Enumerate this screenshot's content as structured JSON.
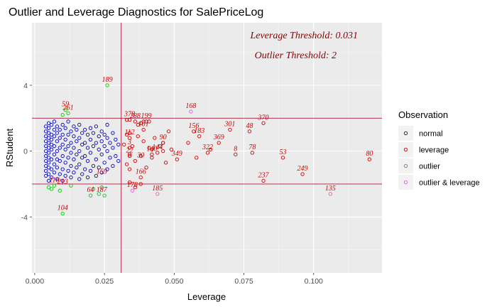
{
  "chart_data": {
    "type": "scatter",
    "title": "Outlier and Leverage Diagnostics for SalePriceLog",
    "xlabel": "Leverage",
    "ylabel": "RStudent",
    "xlim": [
      -0.001,
      0.1245
    ],
    "ylim": [
      -7.4,
      7.8
    ],
    "x_ticks": [
      0.0,
      0.025,
      0.05,
      0.075,
      0.1
    ],
    "x_tick_labels": [
      "0.000",
      "0.025",
      "0.050",
      "0.075",
      "0.100"
    ],
    "y_ticks": [
      -4,
      0,
      4
    ],
    "y_tick_labels": [
      "-4",
      "0",
      "4"
    ],
    "grid": true,
    "leverage_threshold": 0.031,
    "outlier_threshold": 2,
    "annotations": [
      "Leverage Threshold: 0.031",
      "Outlier Threshold: 2"
    ],
    "legend": {
      "title": "Observation",
      "position": "right",
      "entries": [
        {
          "label": "normal",
          "color": "#0000cc"
        },
        {
          "label": "leverage",
          "color": "#cc0000"
        },
        {
          "label": "outlier",
          "color": "#00cc00"
        },
        {
          "label": "outlier & leverage",
          "color": "#cc66cc"
        }
      ]
    },
    "series": [
      {
        "name": "normal",
        "color": "#0000cc",
        "points": [
          [
            0.004,
            -1.5
          ],
          [
            0.004,
            -1.2
          ],
          [
            0.004,
            -0.9
          ],
          [
            0.004,
            -0.6
          ],
          [
            0.004,
            -0.3
          ],
          [
            0.004,
            0.0
          ],
          [
            0.004,
            0.3
          ],
          [
            0.004,
            0.6
          ],
          [
            0.004,
            0.9
          ],
          [
            0.004,
            1.2
          ],
          [
            0.004,
            1.5
          ],
          [
            0.005,
            -1.8
          ],
          [
            0.005,
            -1.4
          ],
          [
            0.005,
            -1.0
          ],
          [
            0.005,
            -0.7
          ],
          [
            0.005,
            -0.4
          ],
          [
            0.005,
            -0.1
          ],
          [
            0.005,
            0.2
          ],
          [
            0.005,
            0.5
          ],
          [
            0.005,
            0.8
          ],
          [
            0.005,
            1.1
          ],
          [
            0.005,
            1.4
          ],
          [
            0.005,
            1.7
          ],
          [
            0.006,
            -1.6
          ],
          [
            0.006,
            -1.1
          ],
          [
            0.006,
            -0.5
          ],
          [
            0.006,
            0.1
          ],
          [
            0.006,
            0.4
          ],
          [
            0.006,
            0.7
          ],
          [
            0.006,
            1.0
          ],
          [
            0.006,
            1.6
          ],
          [
            0.007,
            -1.3
          ],
          [
            0.007,
            -0.8
          ],
          [
            0.007,
            -0.2
          ],
          [
            0.007,
            0.3
          ],
          [
            0.007,
            0.9
          ],
          [
            0.007,
            1.3
          ],
          [
            0.007,
            1.8
          ],
          [
            0.008,
            -1.7
          ],
          [
            0.008,
            -1.0
          ],
          [
            0.008,
            -0.5
          ],
          [
            0.008,
            0.0
          ],
          [
            0.008,
            0.6
          ],
          [
            0.008,
            1.1
          ],
          [
            0.008,
            1.5
          ],
          [
            0.009,
            -1.4
          ],
          [
            0.009,
            -0.6
          ],
          [
            0.009,
            0.2
          ],
          [
            0.009,
            0.8
          ],
          [
            0.009,
            1.3
          ],
          [
            0.01,
            -1.8
          ],
          [
            0.01,
            -1.1
          ],
          [
            0.01,
            -0.3
          ],
          [
            0.01,
            0.4
          ],
          [
            0.01,
            1.0
          ],
          [
            0.01,
            1.6
          ],
          [
            0.011,
            -1.5
          ],
          [
            0.011,
            -0.7
          ],
          [
            0.011,
            0.1
          ],
          [
            0.011,
            0.7
          ],
          [
            0.011,
            1.4
          ],
          [
            0.012,
            -1.2
          ],
          [
            0.012,
            -0.4
          ],
          [
            0.012,
            0.3
          ],
          [
            0.012,
            1.0
          ],
          [
            0.012,
            1.8
          ],
          [
            0.013,
            -1.6
          ],
          [
            0.013,
            -0.9
          ],
          [
            0.013,
            -0.1
          ],
          [
            0.013,
            0.5
          ],
          [
            0.013,
            1.2
          ],
          [
            0.014,
            -1.3
          ],
          [
            0.014,
            -0.5
          ],
          [
            0.014,
            0.2
          ],
          [
            0.014,
            0.9
          ],
          [
            0.014,
            1.5
          ],
          [
            0.015,
            -1.0
          ],
          [
            0.015,
            -0.2
          ],
          [
            0.015,
            0.6
          ],
          [
            0.015,
            1.3
          ],
          [
            0.016,
            -1.7
          ],
          [
            0.016,
            -0.8
          ],
          [
            0.016,
            0.0
          ],
          [
            0.016,
            0.8
          ],
          [
            0.016,
            1.6
          ],
          [
            0.017,
            -1.4
          ],
          [
            0.017,
            -0.4
          ],
          [
            0.017,
            0.4
          ],
          [
            0.017,
            1.1
          ],
          [
            0.018,
            -1.1
          ],
          [
            0.018,
            -0.3
          ],
          [
            0.018,
            0.5
          ],
          [
            0.018,
            1.3
          ],
          [
            0.019,
            -1.6
          ],
          [
            0.019,
            -0.6
          ],
          [
            0.019,
            0.2
          ],
          [
            0.019,
            1.0
          ],
          [
            0.02,
            -1.2
          ],
          [
            0.02,
            -0.1
          ],
          [
            0.02,
            0.7
          ],
          [
            0.02,
            1.4
          ],
          [
            0.021,
            -0.9
          ],
          [
            0.021,
            0.3
          ],
          [
            0.021,
            1.1
          ],
          [
            0.022,
            -1.5
          ],
          [
            0.022,
            -0.5
          ],
          [
            0.022,
            0.5
          ],
          [
            0.022,
            1.5
          ],
          [
            0.023,
            -1.0
          ],
          [
            0.023,
            0.1
          ],
          [
            0.023,
            0.9
          ],
          [
            0.024,
            -1.3
          ],
          [
            0.024,
            -0.2
          ],
          [
            0.024,
            0.6
          ],
          [
            0.024,
            1.2
          ],
          [
            0.025,
            -0.7
          ],
          [
            0.025,
            0.3
          ],
          [
            0.025,
            1.0
          ],
          [
            0.026,
            -1.1
          ],
          [
            0.026,
            0.0
          ],
          [
            0.026,
            0.8
          ],
          [
            0.026,
            1.6
          ],
          [
            0.027,
            -0.4
          ],
          [
            0.027,
            0.5
          ],
          [
            0.028,
            -0.9
          ],
          [
            0.028,
            0.2
          ],
          [
            0.028,
            1.1
          ],
          [
            0.029,
            -0.3
          ],
          [
            0.029,
            0.7
          ],
          [
            0.03,
            -0.6
          ],
          [
            0.03,
            0.4
          ]
        ]
      },
      {
        "name": "leverage",
        "color": "#cc0000",
        "points": [
          [
            0.032,
            0.4
          ],
          [
            0.033,
            -0.8
          ],
          [
            0.033,
            1.0
          ],
          [
            0.034,
            -0.2
          ],
          [
            0.035,
            0.3
          ],
          [
            0.036,
            -0.6
          ],
          [
            0.037,
            0.9
          ],
          [
            0.038,
            -0.3
          ],
          [
            0.039,
            0.6
          ],
          [
            0.04,
            -1.0
          ],
          [
            0.041,
            0.2
          ],
          [
            0.042,
            -0.4
          ],
          [
            0.043,
            0.8
          ],
          [
            0.044,
            -0.1
          ],
          [
            0.046,
            0.5
          ],
          [
            0.047,
            -0.7
          ],
          [
            0.048,
            1.2
          ],
          [
            0.049,
            0.1
          ],
          [
            0.055,
            0.5
          ],
          [
            0.058,
            -0.4
          ],
          [
            0.033,
            1.9
          ],
          [
            0.034,
            1.9
          ],
          [
            0.036,
            1.8
          ],
          [
            0.037,
            1.6
          ],
          [
            0.038,
            1.7
          ],
          [
            0.039,
            1.8
          ],
          [
            0.04,
            1.8
          ],
          [
            0.041,
            1.8
          ],
          [
            0.034,
            1.1
          ],
          [
            0.034,
            0.8
          ],
          [
            0.039,
            1.3
          ],
          [
            0.034,
            0.2
          ],
          [
            0.034,
            -0.3
          ],
          [
            0.042,
            0.1
          ],
          [
            0.042,
            -0.2
          ],
          [
            0.045,
            0.3
          ],
          [
            0.046,
            0.5
          ],
          [
            0.046,
            0.0
          ],
          [
            0.051,
            -0.5
          ],
          [
            0.057,
            1.2
          ],
          [
            0.059,
            0.9
          ],
          [
            0.062,
            -0.1
          ],
          [
            0.063,
            0.1
          ],
          [
            0.066,
            0.5
          ],
          [
            0.07,
            1.3
          ],
          [
            0.072,
            -0.2
          ],
          [
            0.077,
            1.2
          ],
          [
            0.078,
            -0.1
          ],
          [
            0.082,
            1.7
          ],
          [
            0.089,
            -0.4
          ],
          [
            0.096,
            -1.4
          ],
          [
            0.12,
            -0.5
          ],
          [
            0.082,
            -1.8
          ],
          [
            0.034,
            -1.9
          ],
          [
            0.038,
            -1.6
          ],
          [
            0.036,
            -2.2
          ],
          [
            0.038,
            -2.0
          ],
          [
            0.034,
            -1.1
          ]
        ]
      },
      {
        "name": "outlier",
        "color": "#00cc00",
        "points": [
          [
            0.026,
            4.0
          ],
          [
            0.011,
            2.5
          ],
          [
            0.012,
            2.3
          ],
          [
            0.01,
            2.2
          ],
          [
            0.01,
            -3.8
          ],
          [
            0.005,
            -2.2
          ],
          [
            0.006,
            -2.3
          ],
          [
            0.007,
            -2.1
          ],
          [
            0.009,
            -2.4
          ],
          [
            0.013,
            -2.1
          ],
          [
            0.02,
            -2.7
          ],
          [
            0.023,
            -2.6
          ],
          [
            0.025,
            -2.7
          ],
          [
            0.021,
            -2.3
          ],
          [
            0.024,
            -2.2
          ]
        ]
      },
      {
        "name": "outlier & leverage",
        "color": "#cc66cc",
        "points": [
          [
            0.056,
            2.4
          ],
          [
            0.035,
            -2.4
          ],
          [
            0.044,
            -2.6
          ],
          [
            0.106,
            -2.6
          ]
        ]
      }
    ],
    "point_labels": [
      {
        "text": "189",
        "x": 0.026,
        "y": 4.0,
        "color": "#cc0000"
      },
      {
        "text": "168",
        "x": 0.056,
        "y": 2.4,
        "color": "#cc0000"
      },
      {
        "text": "370",
        "x": 0.082,
        "y": 1.7,
        "color": "#cc0000"
      },
      {
        "text": "48",
        "x": 0.077,
        "y": 1.2,
        "color": "#cc0000"
      },
      {
        "text": "301",
        "x": 0.07,
        "y": 1.3,
        "color": "#cc0000"
      },
      {
        "text": "369",
        "x": 0.066,
        "y": 0.5,
        "color": "#cc0000"
      },
      {
        "text": "156",
        "x": 0.057,
        "y": 1.2,
        "color": "#cc0000"
      },
      {
        "text": "183",
        "x": 0.059,
        "y": 0.9,
        "color": "#cc0000"
      },
      {
        "text": "8",
        "x": 0.072,
        "y": -0.2,
        "color": "#cc0000"
      },
      {
        "text": "78",
        "x": 0.078,
        "y": -0.1,
        "color": "#cc0000"
      },
      {
        "text": "53",
        "x": 0.089,
        "y": -0.4,
        "color": "#cc0000"
      },
      {
        "text": "80",
        "x": 0.12,
        "y": -0.5,
        "color": "#cc0000"
      },
      {
        "text": "249",
        "x": 0.096,
        "y": -1.4,
        "color": "#cc0000"
      },
      {
        "text": "237",
        "x": 0.082,
        "y": -1.8,
        "color": "#cc0000"
      },
      {
        "text": "135",
        "x": 0.106,
        "y": -2.6,
        "color": "#cc0000"
      },
      {
        "text": "349",
        "x": 0.051,
        "y": -0.5,
        "color": "#cc0000"
      },
      {
        "text": "322",
        "x": 0.062,
        "y": -0.1,
        "color": "#cc0000"
      },
      {
        "text": "90",
        "x": 0.046,
        "y": 0.5,
        "color": "#cc0000"
      },
      {
        "text": "185",
        "x": 0.044,
        "y": -2.6,
        "color": "#cc0000"
      },
      {
        "text": "166",
        "x": 0.038,
        "y": -1.6,
        "color": "#cc0000"
      },
      {
        "text": "112",
        "x": 0.034,
        "y": 0.8,
        "color": "#cc0000"
      },
      {
        "text": "30",
        "x": 0.038,
        "y": -0.6,
        "color": "#cc0000"
      },
      {
        "text": "140",
        "x": 0.042,
        "y": -0.2,
        "color": "#cc0000"
      },
      {
        "text": "144",
        "x": 0.044,
        "y": -0.1,
        "color": "#cc0000"
      },
      {
        "text": "101",
        "x": 0.039,
        "y": 1.3,
        "color": "#cc0000"
      },
      {
        "text": "378",
        "x": 0.034,
        "y": 1.9,
        "color": "#cc0000"
      },
      {
        "text": "288",
        "x": 0.036,
        "y": 1.8,
        "color": "#cc0000"
      },
      {
        "text": "199",
        "x": 0.04,
        "y": 1.8,
        "color": "#cc0000"
      },
      {
        "text": "178",
        "x": 0.035,
        "y": -2.4,
        "color": "#cc0000"
      },
      {
        "text": "159",
        "x": 0.024,
        "y": -1.6,
        "color": "#cc0000"
      },
      {
        "text": "64",
        "x": 0.02,
        "y": -2.7,
        "color": "#cc0000"
      },
      {
        "text": "187",
        "x": 0.024,
        "y": -2.7,
        "color": "#cc0000"
      },
      {
        "text": "104",
        "x": 0.01,
        "y": -3.8,
        "color": "#cc0000"
      },
      {
        "text": "261",
        "x": 0.012,
        "y": 2.3,
        "color": "#cc0000"
      },
      {
        "text": "59",
        "x": 0.011,
        "y": 2.5,
        "color": "#cc0000"
      },
      {
        "text": "213",
        "x": 0.01,
        "y": -2.2,
        "color": "#cc0000"
      },
      {
        "text": "116",
        "x": 0.007,
        "y": -2.1,
        "color": "#cc0000"
      },
      {
        "text": "3",
        "x": 0.034,
        "y": 0.2,
        "color": "#cc0000"
      },
      {
        "text": "22",
        "x": 0.034,
        "y": -0.3,
        "color": "#cc0000"
      }
    ]
  }
}
